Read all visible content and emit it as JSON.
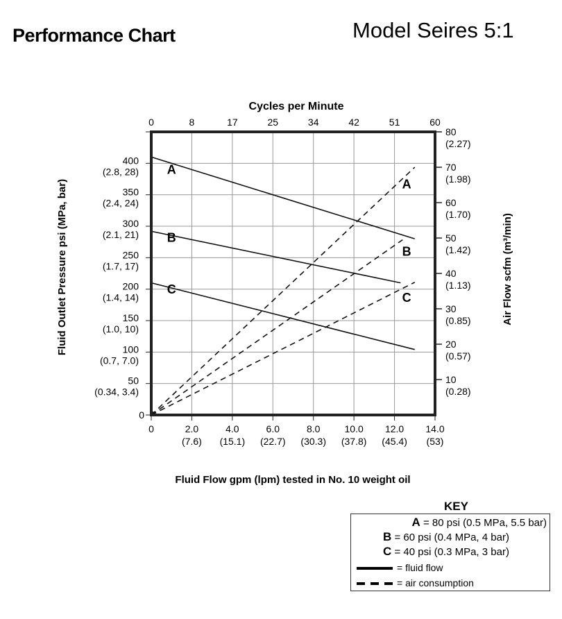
{
  "header": {
    "title": "Performance Chart",
    "model": "Model Seires 5:1"
  },
  "chart_data": {
    "type": "line",
    "title": "Performance Chart",
    "x_top_label": "Cycles per Minute",
    "x_top_ticks": [
      "0",
      "8",
      "17",
      "25",
      "34",
      "42",
      "51",
      "60"
    ],
    "xlabel": "Fluid Flow gpm (lpm) tested in No. 10 weight oil",
    "x_ticks": [
      {
        "main": "0",
        "sub": ""
      },
      {
        "main": "2.0",
        "sub": "(7.6)"
      },
      {
        "main": "4.0",
        "sub": "(15.1)"
      },
      {
        "main": "6.0",
        "sub": "(22.7)"
      },
      {
        "main": "8.0",
        "sub": "(30.3)"
      },
      {
        "main": "10.0",
        "sub": "(37.8)"
      },
      {
        "main": "12.0",
        "sub": "(45.4)"
      },
      {
        "main": "14.0",
        "sub": "(53)"
      }
    ],
    "xlim": [
      0,
      14
    ],
    "ylabel": "Fluid Outlet Pressure psi (MPa, bar)",
    "ylim": [
      0,
      450
    ],
    "y_ticks": [
      {
        "value": 0,
        "main": "0",
        "sub": ""
      },
      {
        "value": 50,
        "main": "50",
        "sub": "(0.34, 3.4)"
      },
      {
        "value": 100,
        "main": "100",
        "sub": "(0.7, 7.0)"
      },
      {
        "value": 150,
        "main": "150",
        "sub": "(1.0, 10)"
      },
      {
        "value": 200,
        "main": "200",
        "sub": "(1.4, 14)"
      },
      {
        "value": 250,
        "main": "250",
        "sub": "(1.7, 17)"
      },
      {
        "value": 300,
        "main": "300",
        "sub": "(2.1, 21)"
      },
      {
        "value": 350,
        "main": "350",
        "sub": "(2.4, 24)"
      },
      {
        "value": 400,
        "main": "400",
        "sub": "(2.8, 28)"
      }
    ],
    "y2label": "Air Flow scfm (m³/min)",
    "y2lim": [
      0,
      80
    ],
    "y2_ticks": [
      {
        "value": 10,
        "main": "10",
        "sub": "(0.28)"
      },
      {
        "value": 20,
        "main": "20",
        "sub": "(0.57)"
      },
      {
        "value": 30,
        "main": "30",
        "sub": "(0.85)"
      },
      {
        "value": 40,
        "main": "40",
        "sub": "(1.13)"
      },
      {
        "value": 50,
        "main": "50",
        "sub": "(1.42)"
      },
      {
        "value": 60,
        "main": "60",
        "sub": "(1.70)"
      },
      {
        "value": 70,
        "main": "70",
        "sub": "(1.98)"
      },
      {
        "value": 80,
        "main": "80",
        "sub": "(2.27)"
      }
    ],
    "grid": true,
    "series": [
      {
        "name": "A",
        "kind": "fluid flow",
        "axis": "left",
        "style": "solid",
        "x": [
          0,
          13.0
        ],
        "y": [
          410,
          280
        ]
      },
      {
        "name": "B",
        "kind": "fluid flow",
        "axis": "left",
        "style": "solid",
        "x": [
          0,
          12.3
        ],
        "y": [
          292,
          210
        ]
      },
      {
        "name": "C",
        "kind": "fluid flow",
        "axis": "left",
        "style": "solid",
        "x": [
          0,
          13.0
        ],
        "y": [
          210,
          104
        ]
      },
      {
        "name": "A",
        "kind": "air consumption",
        "axis": "right",
        "style": "dashed",
        "x": [
          0,
          13.0
        ],
        "y": [
          0,
          70
        ]
      },
      {
        "name": "B",
        "kind": "air consumption",
        "axis": "right",
        "style": "dashed",
        "x": [
          0,
          12.4
        ],
        "y": [
          0,
          49.5
        ]
      },
      {
        "name": "C",
        "kind": "air consumption",
        "axis": "right",
        "style": "dashed",
        "x": [
          0,
          13.0
        ],
        "y": [
          0,
          37.5
        ]
      }
    ],
    "curve_labels": [
      {
        "text": "A",
        "x": 1.0,
        "y": 383,
        "axis": "left"
      },
      {
        "text": "B",
        "x": 1.0,
        "y": 275,
        "axis": "left"
      },
      {
        "text": "C",
        "x": 1.0,
        "y": 193,
        "axis": "left"
      },
      {
        "text": "A",
        "x": 12.6,
        "y": 64,
        "axis": "right"
      },
      {
        "text": "B",
        "x": 12.6,
        "y": 45,
        "axis": "right"
      },
      {
        "text": "C",
        "x": 12.6,
        "y": 32,
        "axis": "right"
      }
    ]
  },
  "key": {
    "title": "KEY",
    "items": [
      {
        "letter": "A",
        "text": "= 80 psi (0.5 MPa, 5.5 bar)"
      },
      {
        "letter": "B",
        "text": "= 60 psi (0.4 MPa, 4 bar)"
      },
      {
        "letter": "C",
        "text": "= 40 psi (0.3 MPa, 3 bar)"
      }
    ],
    "fluid_flow": "= fluid flow",
    "air_consumption": "= air consumption"
  }
}
